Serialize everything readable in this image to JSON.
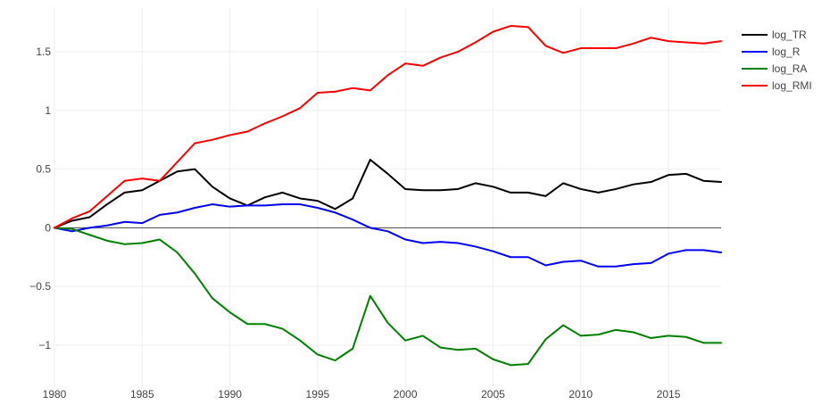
{
  "chart_data": {
    "type": "line",
    "title": "",
    "xlabel": "",
    "ylabel": "",
    "xlim": [
      1980,
      2018
    ],
    "ylim": [
      -1.35,
      1.88
    ],
    "grid": true,
    "legend_position": "top-right",
    "x_ticks": [
      1980,
      1985,
      1990,
      1995,
      2000,
      2005,
      2010,
      2015
    ],
    "x_tick_labels": [
      "1980",
      "1985",
      "1990",
      "1995",
      "2000",
      "2005",
      "2010",
      "2015"
    ],
    "y_ticks": [
      -1,
      -0.5,
      0,
      0.5,
      1,
      1.5
    ],
    "y_tick_labels": [
      "−1",
      "−0.5",
      "0",
      "0.5",
      "1",
      "1.5"
    ],
    "x": [
      1980,
      1981,
      1982,
      1983,
      1984,
      1985,
      1986,
      1987,
      1988,
      1989,
      1990,
      1991,
      1992,
      1993,
      1994,
      1995,
      1996,
      1997,
      1998,
      1999,
      2000,
      2001,
      2002,
      2003,
      2004,
      2005,
      2006,
      2007,
      2008,
      2009,
      2010,
      2011,
      2012,
      2013,
      2014,
      2015,
      2016,
      2017,
      2018
    ],
    "series": [
      {
        "name": "log_TR",
        "color": "#000000",
        "values": [
          0,
          0.06,
          0.09,
          0.2,
          0.3,
          0.32,
          0.4,
          0.48,
          0.5,
          0.35,
          0.25,
          0.19,
          0.26,
          0.3,
          0.25,
          0.23,
          0.16,
          0.25,
          0.58,
          0.46,
          0.33,
          0.32,
          0.32,
          0.33,
          0.38,
          0.35,
          0.3,
          0.3,
          0.27,
          0.38,
          0.33,
          0.3,
          0.33,
          0.37,
          0.39,
          0.45,
          0.46,
          0.4,
          0.39
        ]
      },
      {
        "name": "log_R",
        "color": "#0000ff",
        "values": [
          0,
          -0.03,
          0,
          0.02,
          0.05,
          0.04,
          0.11,
          0.13,
          0.17,
          0.2,
          0.18,
          0.19,
          0.19,
          0.2,
          0.2,
          0.17,
          0.13,
          0.07,
          0,
          -0.03,
          -0.1,
          -0.13,
          -0.12,
          -0.13,
          -0.16,
          -0.2,
          -0.25,
          -0.25,
          -0.32,
          -0.29,
          -0.28,
          -0.33,
          -0.33,
          -0.31,
          -0.3,
          -0.22,
          -0.19,
          -0.19,
          -0.21
        ]
      },
      {
        "name": "log_RA",
        "color": "#008000",
        "values": [
          0,
          -0.01,
          -0.06,
          -0.11,
          -0.14,
          -0.13,
          -0.1,
          -0.21,
          -0.39,
          -0.6,
          -0.72,
          -0.82,
          -0.82,
          -0.86,
          -0.96,
          -1.08,
          -1.13,
          -1.03,
          -0.58,
          -0.81,
          -0.96,
          -0.92,
          -1.02,
          -1.04,
          -1.03,
          -1.12,
          -1.17,
          -1.16,
          -0.95,
          -0.83,
          -0.92,
          -0.91,
          -0.87,
          -0.89,
          -0.94,
          -0.92,
          -0.93,
          -0.98,
          -0.98
        ]
      },
      {
        "name": "log_RMI",
        "color": "#ff0000",
        "values": [
          0,
          0.08,
          0.14,
          0.27,
          0.4,
          0.42,
          0.4,
          0.56,
          0.72,
          0.75,
          0.79,
          0.82,
          0.89,
          0.95,
          1.02,
          1.15,
          1.16,
          1.19,
          1.17,
          1.3,
          1.4,
          1.38,
          1.45,
          1.5,
          1.58,
          1.67,
          1.72,
          1.71,
          1.55,
          1.49,
          1.53,
          1.53,
          1.53,
          1.57,
          1.62,
          1.59,
          1.58,
          1.57,
          1.59
        ]
      }
    ]
  }
}
